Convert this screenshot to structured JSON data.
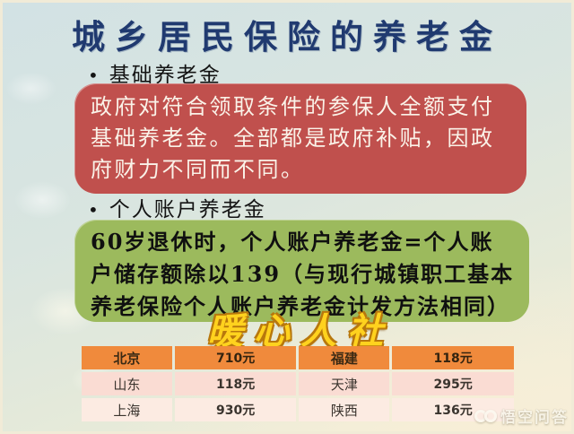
{
  "slide": {
    "title": "城乡居民保险的养老金",
    "bullet_char": "•",
    "bullets": [
      "基础养老金",
      "个人账户养老金"
    ],
    "red_box_text": "政府对符合领取条件的参保人全额支付基础养老金。全部都是政府补贴，因政府财力不同而不同。",
    "green_box_text": "60岁退休时，个人账户养老金=个人账户储存额除以139（与现行城镇职工基本养老保险个人账户养老金计发方法相同）",
    "brand_text": "暖心人社",
    "colors": {
      "title_navy": "#203a70",
      "red_box": "#c0504d",
      "green_box": "#9cba5d",
      "brand_gold": "#ffd21e",
      "table_header_bg": "#f08a3c",
      "table_row_pink": "#fadcd3",
      "table_row_light_pink": "#fcebe2"
    }
  },
  "chart_data": {
    "type": "table",
    "rows": [
      [
        "北京",
        "710元",
        "福建",
        "118元"
      ],
      [
        "山东",
        "118元",
        "天津",
        "295元"
      ],
      [
        "上海",
        "930元",
        "陕西",
        "136元"
      ]
    ]
  },
  "watermark": {
    "logo": "wukong-goggles-icon",
    "text": "悟空问答"
  }
}
